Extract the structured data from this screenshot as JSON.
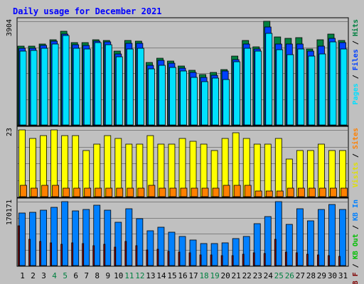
{
  "page": {
    "background": "#c0c0c0",
    "panel_background": "#c0c0c0",
    "border_color": "#000000"
  },
  "chart_data": {
    "type": "bar",
    "title": "Daily usage for December 2021",
    "title_color": "#0000ff",
    "grid": true,
    "categories": [
      "1",
      "2",
      "3",
      "4",
      "5",
      "6",
      "7",
      "8",
      "9",
      "10",
      "11",
      "12",
      "13",
      "14",
      "15",
      "16",
      "17",
      "18",
      "19",
      "20",
      "21",
      "22",
      "23",
      "24",
      "25",
      "26",
      "27",
      "28",
      "29",
      "30",
      "31"
    ],
    "weekend_days": [
      4,
      5,
      11,
      12,
      18,
      19,
      25,
      26
    ],
    "colors": {
      "hits": "#008040",
      "files": "#0040ff",
      "pages": "#00e0ff",
      "visits": "#ffff00",
      "sites": "#ff8000",
      "kbin": "#0080ff",
      "kbout": "#00c000",
      "kbf": "#800000",
      "weekday_label": "#000000",
      "weekend_label": "#008040"
    },
    "panels": [
      {
        "id": "top",
        "max_label": "3904",
        "ylim": [
          0,
          3904
        ],
        "legend": [
          {
            "text": "Pages",
            "color": "#00e0ff"
          },
          {
            "text": " / ",
            "color": "#000000"
          },
          {
            "text": "Files",
            "color": "#0040ff"
          },
          {
            "text": " / ",
            "color": "#000000"
          },
          {
            "text": "Hits",
            "color": "#008040"
          }
        ],
        "series": [
          {
            "name": "Hits",
            "values": [
              2960,
              2955,
              3050,
              3220,
              3520,
              3100,
              3090,
              3220,
              3180,
              2770,
              3180,
              3160,
              2340,
              2520,
              2400,
              2210,
              2050,
              1890,
              1970,
              2090,
              2590,
              3180,
              2950,
              3904,
              3310,
              3260,
              3280,
              2860,
              3210,
              3430,
              3190
            ]
          },
          {
            "name": "Files",
            "values": [
              2880,
              2900,
              2990,
              3150,
              3420,
              3020,
              3000,
              3160,
              3120,
              2680,
              3080,
              3070,
              2250,
              2420,
              2330,
              2130,
              1980,
              1800,
              1880,
              2020,
              2470,
              3060,
              2860,
              3690,
              3060,
              3060,
              3040,
              2770,
              2970,
              3270,
              3090
            ]
          },
          {
            "name": "Pages",
            "values": [
              2770,
              2800,
              2880,
              3040,
              3360,
              2890,
              2860,
              3090,
              3020,
              2580,
              2870,
              2880,
              2110,
              2240,
              2160,
              2040,
              1780,
              1620,
              1770,
              1700,
              2380,
              2880,
              2780,
              3440,
              2830,
              2660,
              2850,
              2600,
              2680,
              3130,
              2870
            ]
          }
        ]
      },
      {
        "id": "middle",
        "max_label": "23",
        "ylim": [
          0,
          23
        ],
        "legend": [
          {
            "text": "Visits",
            "color": "#e0e000"
          },
          {
            "text": " / ",
            "color": "#000000"
          },
          {
            "text": "Sites",
            "color": "#ff8000"
          }
        ],
        "series": [
          {
            "name": "Visits",
            "values": [
              23,
              20,
              21,
              23,
              21,
              21,
              16,
              18,
              21,
              20,
              18,
              18,
              21,
              18,
              18,
              20,
              19,
              18,
              16,
              20,
              22,
              20,
              18,
              18,
              20,
              13,
              16,
              16,
              18,
              16,
              16
            ]
          },
          {
            "name": "Sites",
            "values": [
              4,
              3,
              4,
              4,
              3,
              3,
              3,
              3,
              3,
              3,
              3,
              3,
              4,
              3,
              3,
              3,
              3,
              3,
              3,
              4,
              4,
              4,
              2,
              2,
              2,
              3,
              3,
              3,
              3,
              3,
              3
            ]
          }
        ]
      },
      {
        "id": "bottom",
        "max_label": "170171",
        "ylim": [
          0,
          170171
        ],
        "legend": [
          {
            "text": "KB F",
            "color": "#800000"
          },
          {
            "text": " / ",
            "color": "#000000"
          },
          {
            "text": "KB Out",
            "color": "#00c000"
          },
          {
            "text": " / ",
            "color": "#000000"
          },
          {
            "text": "KB In",
            "color": "#0080ff"
          }
        ],
        "series": [
          {
            "name": "KB In",
            "values": [
              140000,
              142000,
              148000,
              155000,
              170171,
              145000,
              150000,
              160000,
              148000,
              115000,
              152000,
              125000,
              92000,
              102000,
              88000,
              78000,
              68000,
              58000,
              58000,
              60000,
              72000,
              78000,
              112000,
              130000,
              170171,
              110000,
              152000,
              120000,
              150000,
              162000,
              150000
            ]
          },
          {
            "name": "KB F",
            "values": [
              105000,
              70000,
              65000,
              60000,
              56000,
              60000,
              58000,
              52000,
              56000,
              50000,
              64000,
              52000,
              42000,
              44000,
              38000,
              36000,
              34000,
              28000,
              28000,
              26000,
              26000,
              30000,
              34000,
              32000,
              70000,
              36000,
              34000,
              30000,
              28000,
              26000,
              24000
            ]
          }
        ]
      }
    ]
  }
}
